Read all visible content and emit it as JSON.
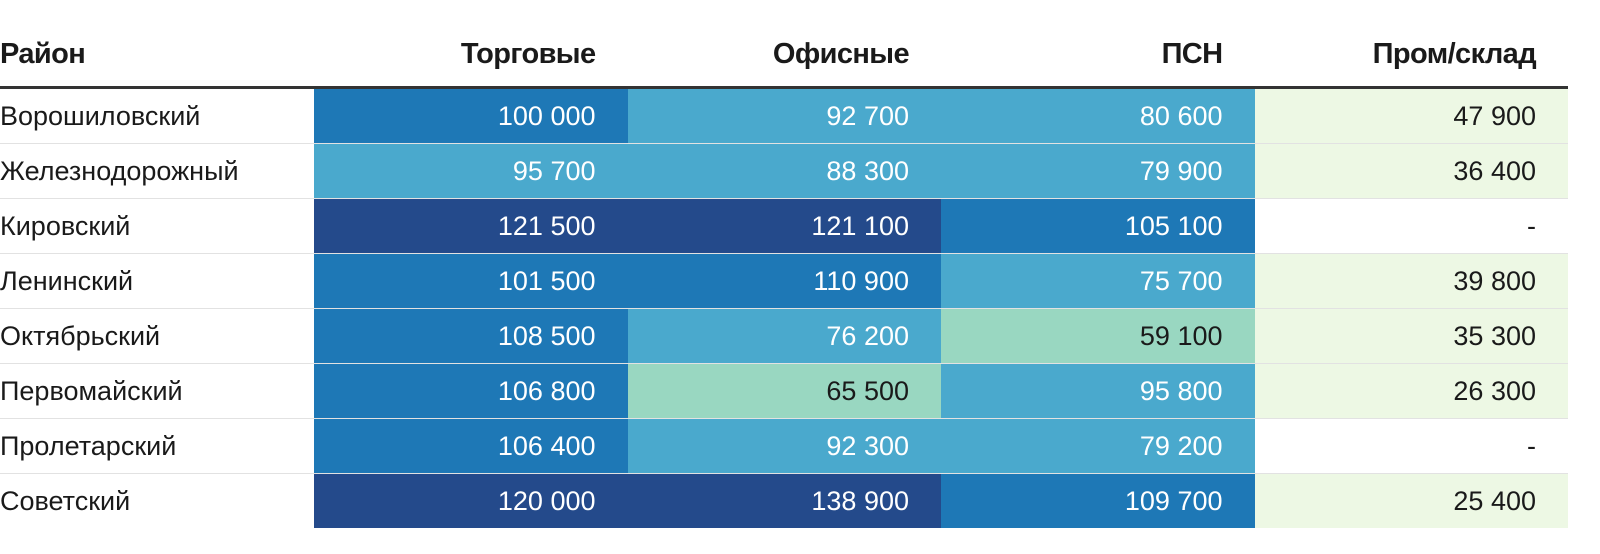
{
  "chart_data": {
    "type": "table",
    "columns": [
      "Район",
      "Торговые",
      "Офисные",
      "ПСН",
      "Пром/склад"
    ],
    "rows": [
      {
        "district": "Ворошиловский",
        "values": [
          "100 000",
          "92 700",
          "80 600",
          "47 900"
        ]
      },
      {
        "district": "Железнодорожный",
        "values": [
          "95 700",
          "88 300",
          "79 900",
          "36 400"
        ]
      },
      {
        "district": "Кировский",
        "values": [
          "121 500",
          "121 100",
          "105 100",
          "-"
        ]
      },
      {
        "district": "Ленинский",
        "values": [
          "101 500",
          "110 900",
          "75 700",
          "39 800"
        ]
      },
      {
        "district": "Октябрьский",
        "values": [
          "108 500",
          "76 200",
          "59 100",
          "35 300"
        ]
      },
      {
        "district": "Первомайский",
        "values": [
          "106 800",
          "65 500",
          "95 800",
          "26 300"
        ]
      },
      {
        "district": "Пролетарский",
        "values": [
          "106 400",
          "92 300",
          "79 200",
          "-"
        ]
      },
      {
        "district": "Советский",
        "values": [
          "120 000",
          "138 900",
          "109 700",
          "25 400"
        ]
      }
    ],
    "color_scale": {
      "thresholds": [
        20000,
        50000,
        70000,
        100000,
        120000
      ],
      "colors": [
        "#edf8e4",
        "#99d7c1",
        "#4aa9cd",
        "#1e78b6",
        "#244a8b"
      ],
      "text_colors": [
        "#1a1a1a",
        "#1a1a1a",
        "#ffffff",
        "#ffffff",
        "#ffffff"
      ],
      "missing_color": "#ffffff"
    }
  }
}
